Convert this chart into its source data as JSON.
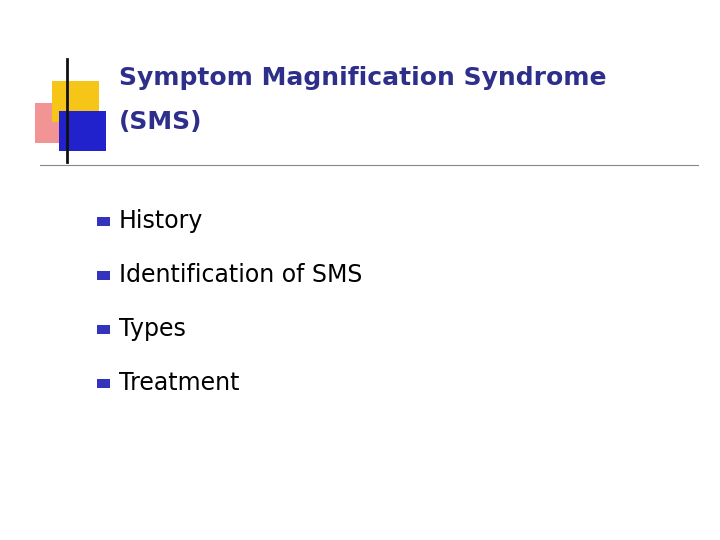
{
  "title_line1": "Symptom Magnification Syndrome",
  "title_line2": "(SMS)",
  "title_color": "#2E2E8B",
  "bullet_items": [
    "History",
    "Identification of SMS",
    "Types",
    "Treatment"
  ],
  "bullet_color": "#3333BB",
  "bullet_text_color": "#000000",
  "background_color": "#FFFFFF",
  "separator_color": "#888888",
  "deco_yellow": "#F5C518",
  "deco_pink": "#F07070",
  "deco_blue": "#2222CC",
  "deco_line_color": "#111111",
  "title_fontsize": 18,
  "bullet_fontsize": 17
}
